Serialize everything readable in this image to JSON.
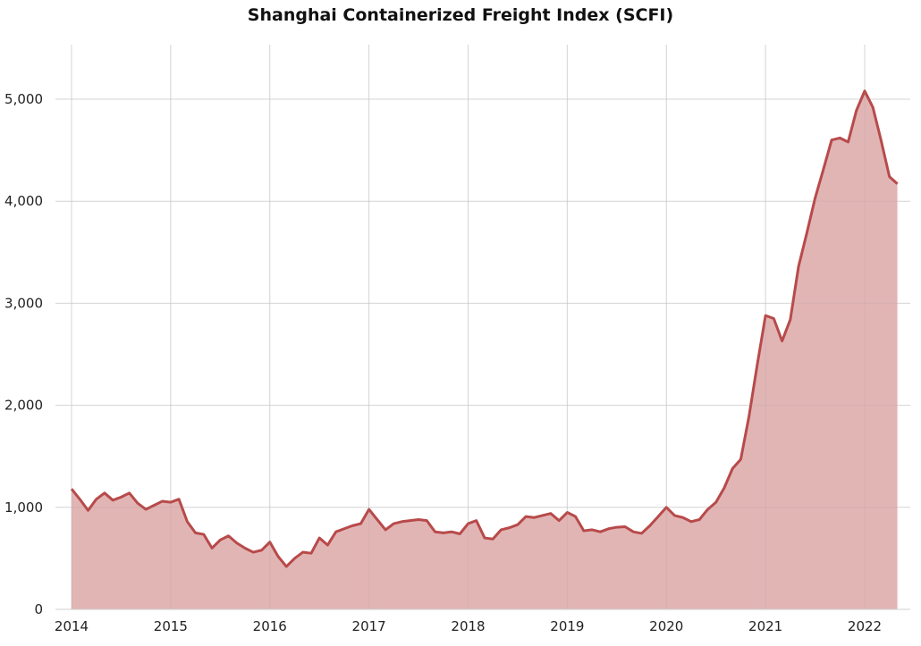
{
  "chart_data": {
    "type": "area",
    "title": "Shanghai Containerized Freight Index (SCFI)",
    "xlabel": "",
    "ylabel": "",
    "ylim": [
      0,
      5500
    ],
    "xlim": [
      2014.0,
      2022.33
    ],
    "grid": true,
    "line_color": "#b84a4a",
    "fill_color": "#e2b5b5",
    "y_ticks": [
      {
        "value": 0,
        "label": "0"
      },
      {
        "value": 1000,
        "label": "1,000"
      },
      {
        "value": 2000,
        "label": "2,000"
      },
      {
        "value": 3000,
        "label": "3,000"
      },
      {
        "value": 4000,
        "label": "4,000"
      },
      {
        "value": 5000,
        "label": "5,000"
      }
    ],
    "x_ticks": [
      {
        "value": 2014,
        "label": "2014"
      },
      {
        "value": 2015,
        "label": "2015"
      },
      {
        "value": 2016,
        "label": "2016"
      },
      {
        "value": 2017,
        "label": "2017"
      },
      {
        "value": 2018,
        "label": "2018"
      },
      {
        "value": 2019,
        "label": "2019"
      },
      {
        "value": 2020,
        "label": "2020"
      },
      {
        "value": 2021,
        "label": "2021"
      },
      {
        "value": 2022,
        "label": "2022"
      }
    ],
    "series": [
      {
        "x": [
          2014.0,
          2014.083,
          2014.167,
          2014.25,
          2014.333,
          2014.417,
          2014.5,
          2014.583,
          2014.667,
          2014.75,
          2014.833,
          2014.917,
          2015.0,
          2015.083,
          2015.167,
          2015.25,
          2015.333,
          2015.417,
          2015.5,
          2015.583,
          2015.667,
          2015.75,
          2015.833,
          2015.917,
          2016.0,
          2016.083,
          2016.167,
          2016.25,
          2016.333,
          2016.417,
          2016.5,
          2016.583,
          2016.667,
          2016.75,
          2016.833,
          2016.917,
          2017.0,
          2017.083,
          2017.167,
          2017.25,
          2017.333,
          2017.417,
          2017.5,
          2017.583,
          2017.667,
          2017.75,
          2017.833,
          2017.917,
          2018.0,
          2018.083,
          2018.167,
          2018.25,
          2018.333,
          2018.417,
          2018.5,
          2018.583,
          2018.667,
          2018.75,
          2018.833,
          2018.917,
          2019.0,
          2019.083,
          2019.167,
          2019.25,
          2019.333,
          2019.417,
          2019.5,
          2019.583,
          2019.667,
          2019.75,
          2019.833,
          2019.917,
          2020.0,
          2020.083,
          2020.167,
          2020.25,
          2020.333,
          2020.417,
          2020.5,
          2020.583,
          2020.667,
          2020.75,
          2020.833,
          2020.917,
          2021.0,
          2021.083,
          2021.167,
          2021.25,
          2021.333,
          2021.417,
          2021.5,
          2021.583,
          2021.667,
          2021.75,
          2021.833,
          2021.917,
          2022.0,
          2022.083,
          2022.167,
          2022.25,
          2022.33
        ],
        "y": [
          1180,
          1080,
          970,
          1080,
          1140,
          1070,
          1100,
          1140,
          1040,
          980,
          1020,
          1060,
          1050,
          1080,
          860,
          750,
          735,
          600,
          680,
          720,
          650,
          600,
          560,
          580,
          660,
          520,
          420,
          500,
          560,
          550,
          700,
          630,
          760,
          790,
          820,
          840,
          980,
          880,
          780,
          840,
          860,
          870,
          880,
          870,
          760,
          750,
          760,
          740,
          840,
          870,
          700,
          690,
          780,
          800,
          830,
          910,
          900,
          920,
          940,
          870,
          950,
          910,
          770,
          780,
          760,
          790,
          805,
          810,
          760,
          745,
          820,
          910,
          1000,
          920,
          900,
          860,
          880,
          980,
          1050,
          1190,
          1380,
          1470,
          1890,
          2400,
          2880,
          2850,
          2630,
          2840,
          3360,
          3690,
          4030,
          4310,
          4600,
          4620,
          4580,
          4890,
          5080,
          4920,
          4590,
          4240,
          4170
        ]
      }
    ]
  }
}
